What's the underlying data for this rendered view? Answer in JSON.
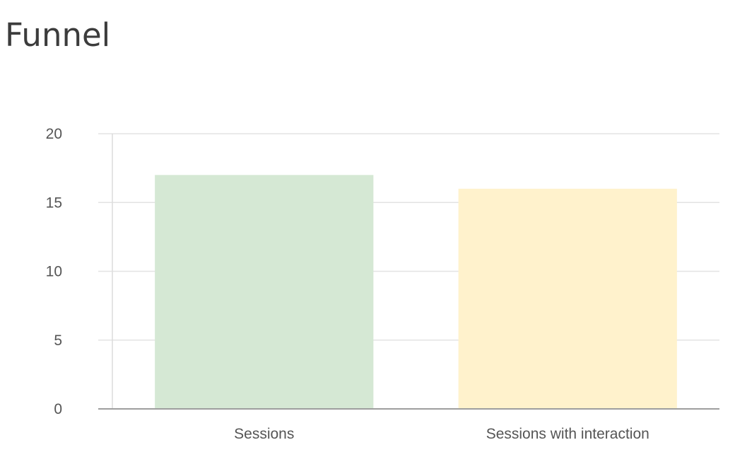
{
  "chart_data": {
    "type": "bar",
    "title": "Funnel",
    "categories": [
      "Sessions",
      "Sessions with interaction"
    ],
    "values": [
      17,
      16
    ],
    "colors": [
      "#d5e8d4",
      "#fff2cc"
    ],
    "ylim": [
      0,
      20
    ],
    "yticks": [
      "0",
      "5",
      "10",
      "15",
      "20"
    ],
    "grid": true,
    "legend": "none"
  }
}
